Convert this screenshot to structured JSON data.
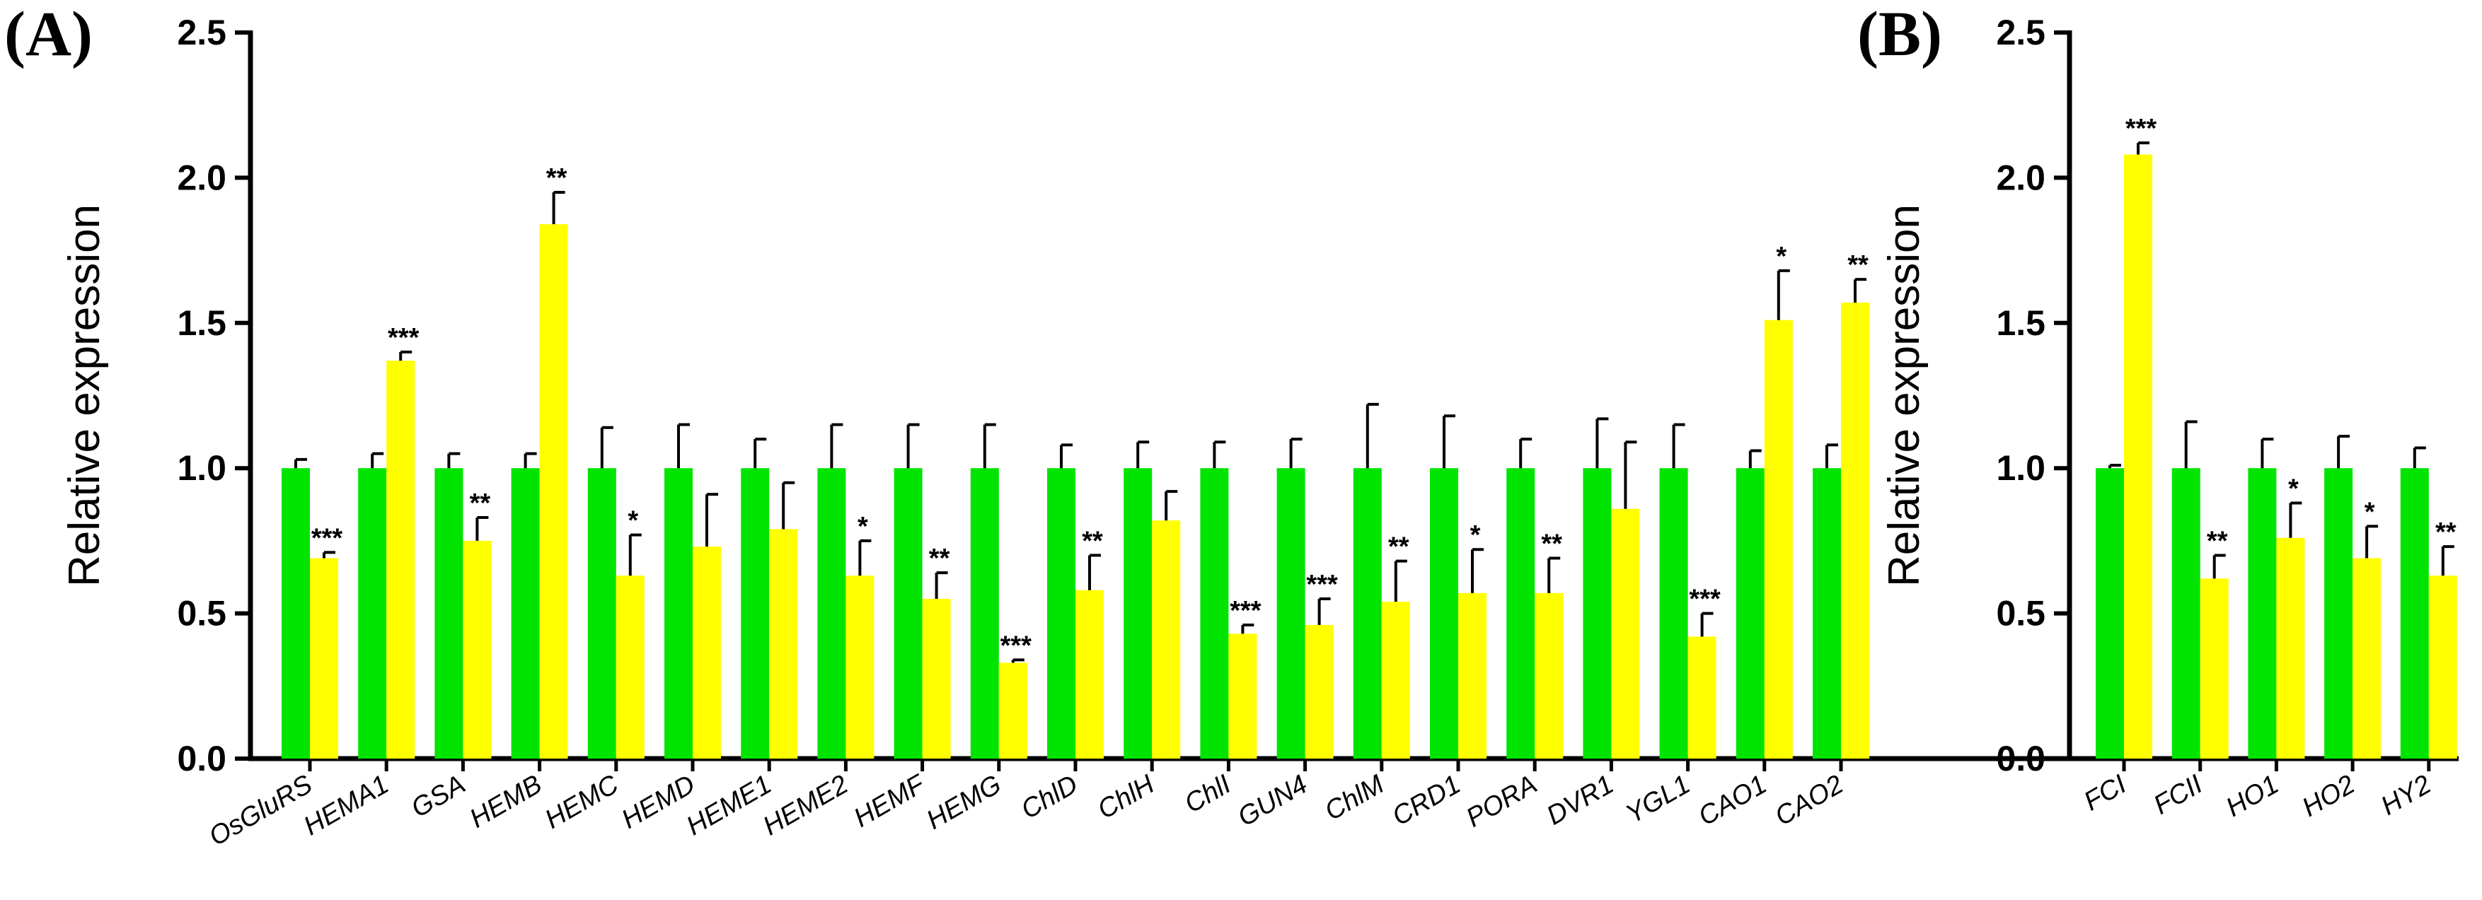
{
  "colors": {
    "control": "#00e400",
    "treatment": "#ffff00",
    "axis": "#000000"
  },
  "chart_data": [
    {
      "type": "bar",
      "panel_label": "(A)",
      "ylabel": "Relative expression",
      "ylim": [
        0,
        2.5
      ],
      "yticks": [
        "0.0",
        "0.5",
        "1.0",
        "1.5",
        "2.0",
        "2.5"
      ],
      "grid": false,
      "categories": [
        "OsGluRS",
        "HEMA1",
        "GSA",
        "HEMB",
        "HEMC",
        "HEMD",
        "HEME1",
        "HEME2",
        "HEMF",
        "HEMG",
        "ChlD",
        "ChlH",
        "ChlI",
        "GUN4",
        "ChlM",
        "CRD1",
        "PORA",
        "DVR1",
        "YGL1",
        "CAO1",
        "CAO2"
      ],
      "series": [
        {
          "values": [
            1.0,
            1.0,
            1.0,
            1.0,
            1.0,
            1.0,
            1.0,
            1.0,
            1.0,
            1.0,
            1.0,
            1.0,
            1.0,
            1.0,
            1.0,
            1.0,
            1.0,
            1.0,
            1.0,
            1.0,
            1.0
          ],
          "errors": [
            0.03,
            0.05,
            0.05,
            0.05,
            0.14,
            0.15,
            0.1,
            0.15,
            0.15,
            0.15,
            0.08,
            0.09,
            0.09,
            0.1,
            0.22,
            0.18,
            0.1,
            0.17,
            0.15,
            0.06,
            0.08
          ]
        },
        {
          "values": [
            0.69,
            1.37,
            0.75,
            1.84,
            0.63,
            0.73,
            0.79,
            0.63,
            0.55,
            0.33,
            0.58,
            0.82,
            0.43,
            0.46,
            0.54,
            0.57,
            0.57,
            0.86,
            0.42,
            1.51,
            1.57
          ],
          "errors": [
            0.02,
            0.03,
            0.08,
            0.11,
            0.14,
            0.18,
            0.16,
            0.12,
            0.09,
            0.01,
            0.12,
            0.1,
            0.03,
            0.09,
            0.14,
            0.15,
            0.12,
            0.23,
            0.08,
            0.17,
            0.08
          ]
        }
      ],
      "significance": [
        "***",
        "***",
        "**",
        "**",
        "*",
        "",
        "",
        "*",
        "**",
        "***",
        "**",
        "",
        "***",
        "***",
        "**",
        "*",
        "**",
        "",
        "***",
        "*",
        "**"
      ]
    },
    {
      "type": "bar",
      "panel_label": "(B)",
      "ylabel": "Relative expression",
      "ylim": [
        0,
        2.5
      ],
      "yticks": [
        "0.0",
        "0.5",
        "1.0",
        "1.5",
        "2.0",
        "2.5"
      ],
      "grid": false,
      "categories": [
        "FCI",
        "FCII",
        "HO1",
        "HO2",
        "HY2"
      ],
      "series": [
        {
          "values": [
            1.0,
            1.0,
            1.0,
            1.0,
            1.0
          ],
          "errors": [
            0.01,
            0.16,
            0.1,
            0.11,
            0.07
          ]
        },
        {
          "values": [
            2.08,
            0.62,
            0.76,
            0.69,
            0.63
          ],
          "errors": [
            0.04,
            0.08,
            0.12,
            0.11,
            0.1
          ]
        }
      ],
      "significance": [
        "***",
        "**",
        "*",
        "*",
        "**"
      ]
    }
  ]
}
